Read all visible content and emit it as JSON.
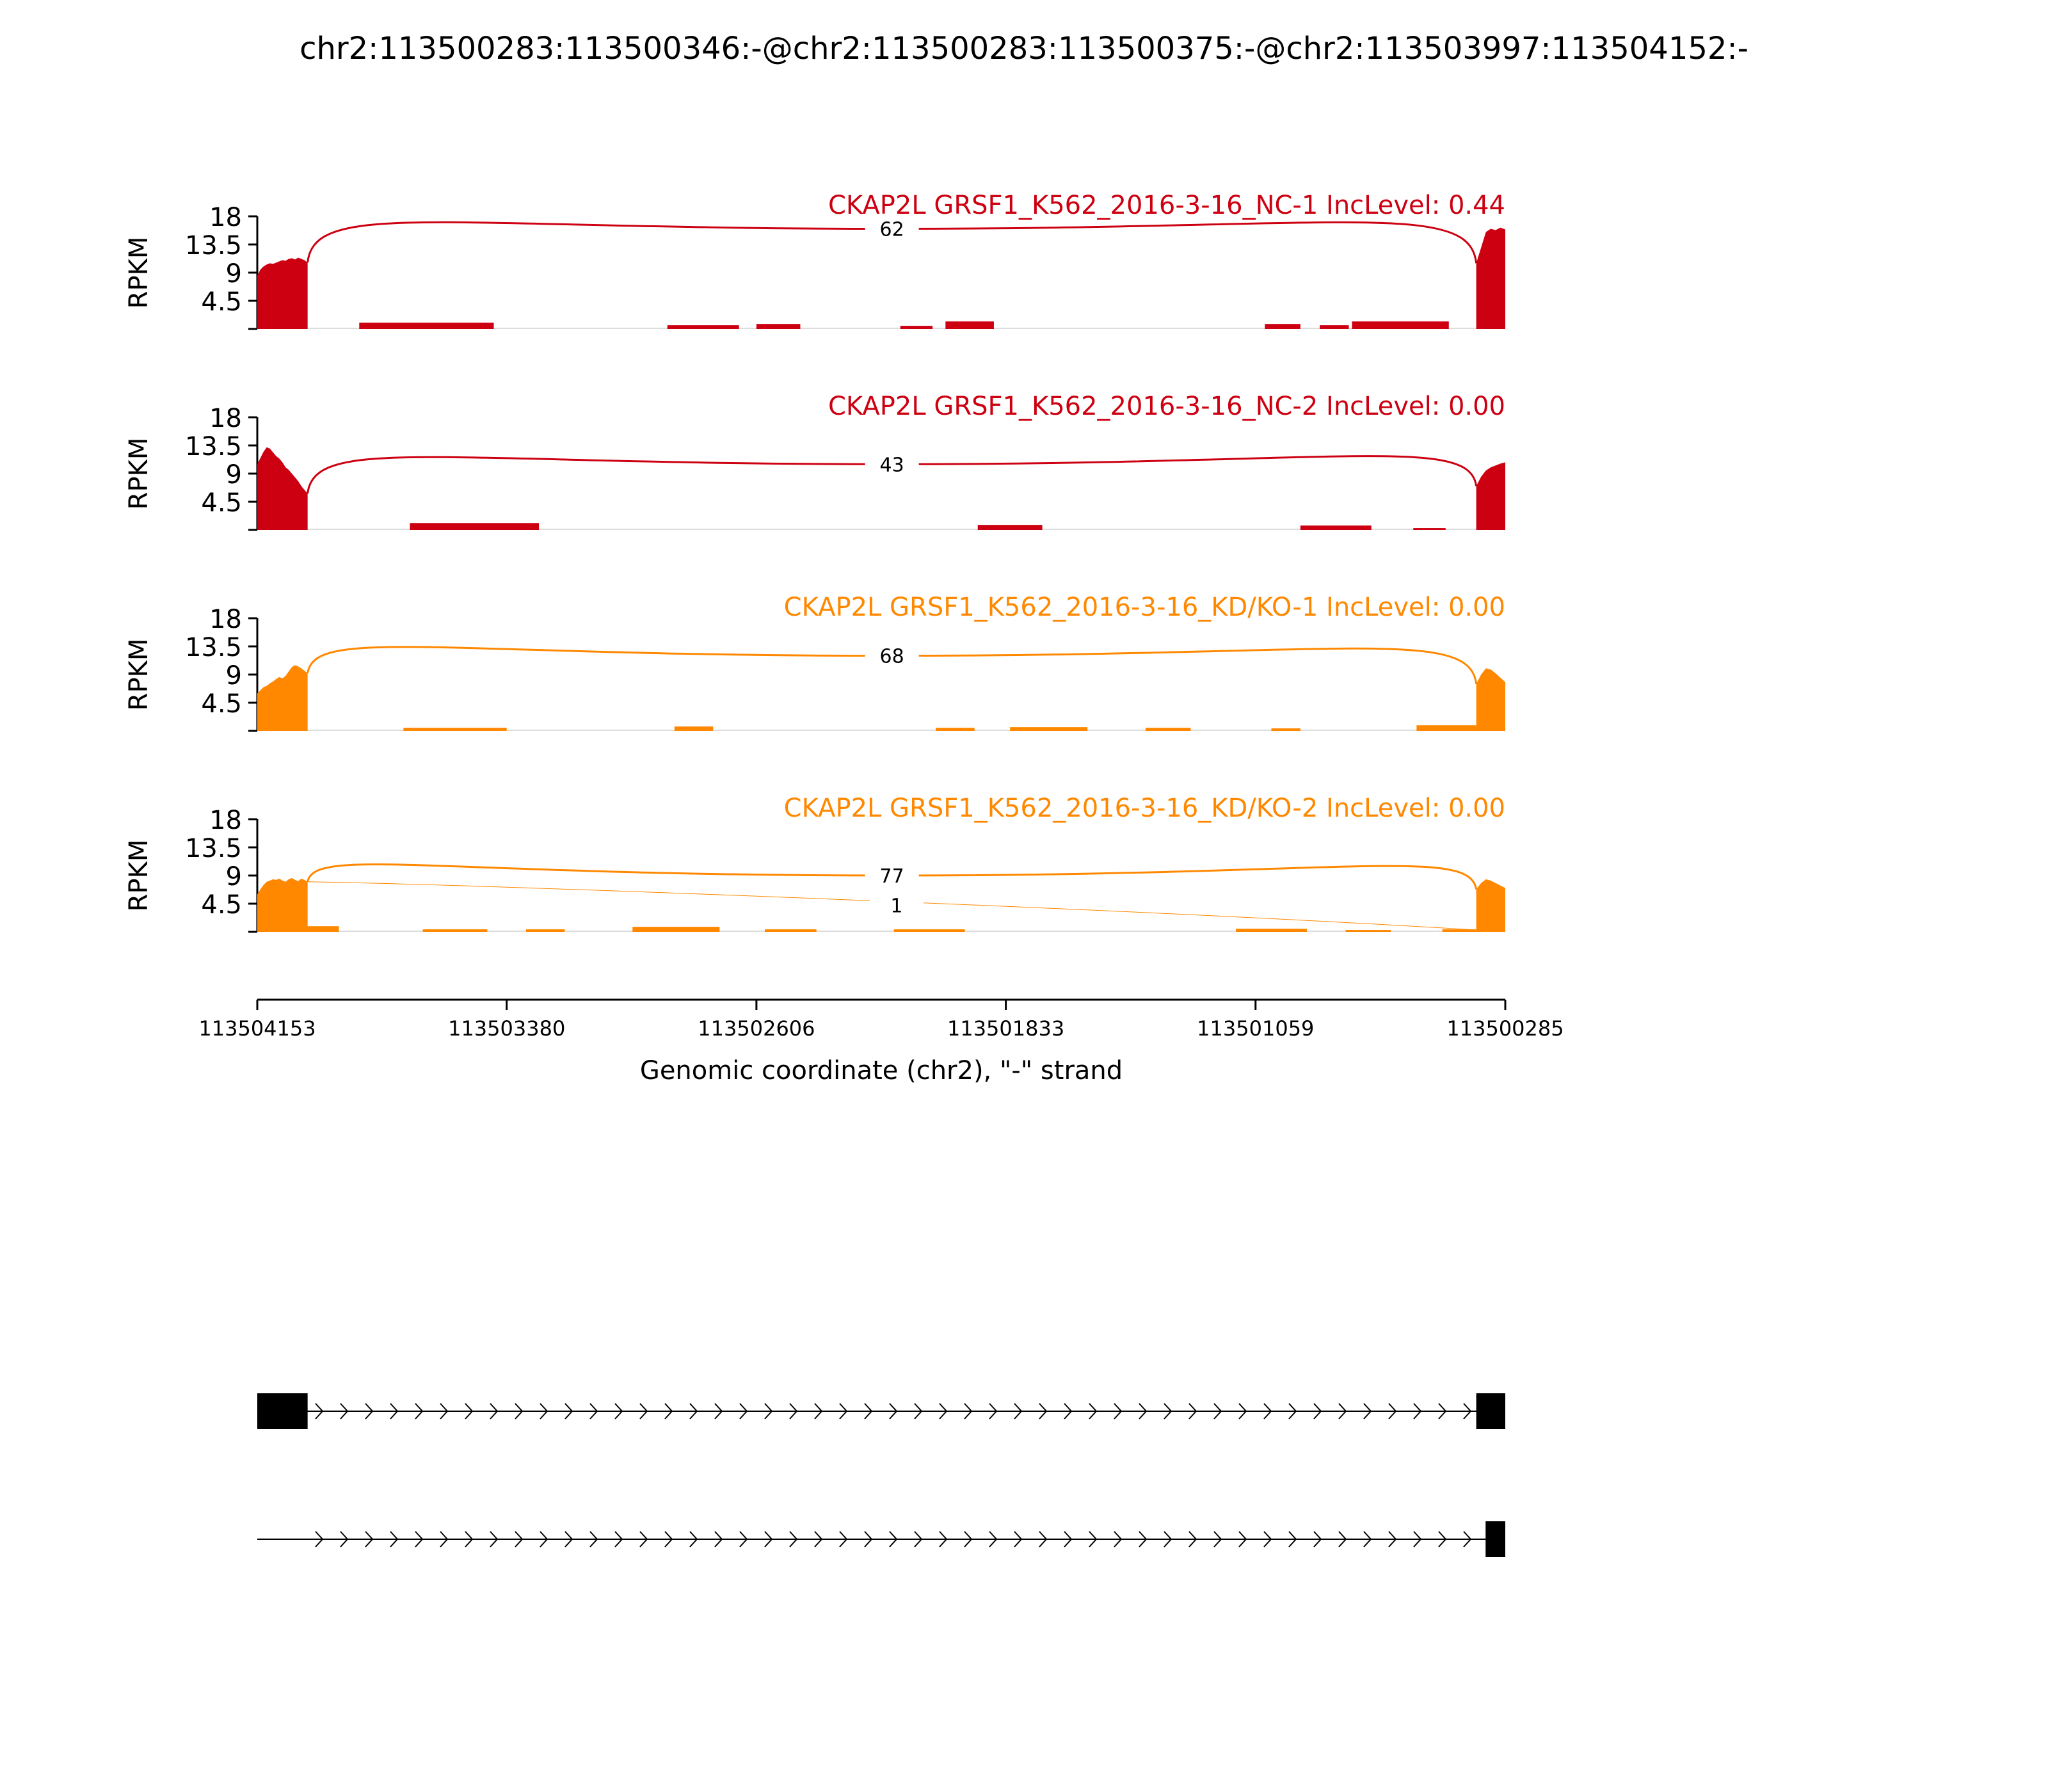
{
  "title": "chr2:113500283:113500346:-@chr2:113500283:113500375:-@chr2:113503997:113504152:-",
  "colors": {
    "nc": "#cc0011",
    "kd": "#ff8800",
    "axis": "#000000",
    "gene": "#000000"
  },
  "chart_data": {
    "type": "area",
    "y_axis": {
      "label": "RPKM",
      "ylim": [
        0,
        18
      ],
      "ticks": [
        "18",
        "13.5",
        "9",
        "4.5"
      ],
      "tick_values": [
        18,
        13.5,
        9,
        4.5
      ]
    },
    "x_axis": {
      "label": "Genomic coordinate (chr2), \"-\" strand",
      "xlim": [
        113504153,
        113500285
      ],
      "ticks": [
        "113504153",
        "113503380",
        "113502606",
        "113501833",
        "113501059",
        "113500285"
      ],
      "tick_values": [
        113504153,
        113503380,
        113502606,
        113501833,
        113501059,
        113500285
      ]
    },
    "exons": {
      "upstream": [
        113504153,
        113503997
      ],
      "downstream": [
        113500375,
        113500285
      ]
    },
    "series": [
      {
        "label": "CKAP2L GRSF1_K562_2016-3-16_NC-1 IncLevel: 0.44",
        "color": "#cc0011",
        "upstream_profile": [
          8.5,
          9.5,
          10.0,
          10.3,
          10.5,
          10.4,
          10.6,
          10.8,
          11.0,
          10.9,
          11.2,
          11.3,
          11.1,
          11.4,
          11.2,
          11.0,
          10.6
        ],
        "downstream_profile": [
          10.5,
          13.0,
          15.5,
          16.0,
          15.8,
          16.2,
          15.9
        ],
        "intron_bumps": [
          {
            "start": 113504108,
            "end": 113504020,
            "height": 0.3
          },
          {
            "start": 113503837,
            "end": 113503420,
            "height": 1.0
          },
          {
            "start": 113502882,
            "end": 113502660,
            "height": 0.6
          },
          {
            "start": 113502606,
            "end": 113502470,
            "height": 0.8
          },
          {
            "start": 113502160,
            "end": 113502060,
            "height": 0.5
          },
          {
            "start": 113502020,
            "end": 113501870,
            "height": 1.2
          },
          {
            "start": 113501030,
            "end": 113500920,
            "height": 0.8
          },
          {
            "start": 113500860,
            "end": 113500770,
            "height": 0.6
          },
          {
            "start": 113500760,
            "end": 113500460,
            "height": 1.2
          }
        ],
        "junctions": [
          {
            "count": "62",
            "peak": 16.0,
            "from": 113503997,
            "to": 113500375
          }
        ]
      },
      {
        "label": "CKAP2L GRSF1_K562_2016-3-16_NC-2 IncLevel: 0.00",
        "color": "#cc0011",
        "upstream_profile": [
          10.5,
          11.5,
          12.5,
          13.2,
          13.0,
          12.4,
          11.8,
          11.4,
          10.8,
          10.0,
          9.6,
          9.0,
          8.4,
          7.8,
          7.0,
          6.4,
          5.8
        ],
        "downstream_profile": [
          7.0,
          8.5,
          9.5,
          10.0,
          10.3,
          10.6,
          10.8
        ],
        "intron_bumps": [
          {
            "start": 113503680,
            "end": 113503280,
            "height": 1.1
          },
          {
            "start": 113501920,
            "end": 113501720,
            "height": 0.8
          },
          {
            "start": 113500920,
            "end": 113500700,
            "height": 0.7
          },
          {
            "start": 113500570,
            "end": 113500470,
            "height": 0.3
          }
        ],
        "junctions": [
          {
            "count": "43",
            "peak": 10.5,
            "from": 113503997,
            "to": 113500375
          }
        ]
      },
      {
        "label": "CKAP2L GRSF1_K562_2016-3-16_KD/KO-1 IncLevel: 0.00",
        "color": "#ff8800",
        "upstream_profile": [
          6.0,
          6.5,
          7.0,
          7.2,
          7.6,
          7.9,
          8.3,
          8.6,
          8.4,
          8.8,
          9.5,
          10.2,
          10.5,
          10.3,
          10.0,
          9.6,
          9.2
        ],
        "downstream_profile": [
          7.5,
          9.0,
          10.0,
          9.8,
          9.2,
          8.5,
          7.8
        ],
        "intron_bumps": [
          {
            "start": 113503700,
            "end": 113503380,
            "height": 0.5
          },
          {
            "start": 113502860,
            "end": 113502740,
            "height": 0.7
          },
          {
            "start": 113502050,
            "end": 113501930,
            "height": 0.5
          },
          {
            "start": 113501820,
            "end": 113501580,
            "height": 0.6
          },
          {
            "start": 113501400,
            "end": 113501260,
            "height": 0.5
          },
          {
            "start": 113501010,
            "end": 113500920,
            "height": 0.4
          },
          {
            "start": 113500560,
            "end": 113500375,
            "height": 0.9
          }
        ],
        "junctions": [
          {
            "count": "68",
            "peak": 12.0,
            "from": 113503997,
            "to": 113500375
          }
        ]
      },
      {
        "label": "CKAP2L GRSF1_K562_2016-3-16_KD/KO-2 IncLevel: 0.00",
        "color": "#ff8800",
        "upstream_profile": [
          6.0,
          6.8,
          7.5,
          8.0,
          8.2,
          8.4,
          8.3,
          8.5,
          8.2,
          8.0,
          8.4,
          8.6,
          8.3,
          8.1,
          8.5,
          8.3,
          8.0
        ],
        "downstream_profile": [
          6.8,
          7.8,
          8.4,
          8.2,
          7.8,
          7.4,
          7.0
        ],
        "intron_bumps": [
          {
            "start": 113504000,
            "end": 113503900,
            "height": 0.9
          },
          {
            "start": 113503640,
            "end": 113503440,
            "height": 0.4
          },
          {
            "start": 113503320,
            "end": 113503200,
            "height": 0.4
          },
          {
            "start": 113502990,
            "end": 113502720,
            "height": 0.8
          },
          {
            "start": 113502580,
            "end": 113502420,
            "height": 0.4
          },
          {
            "start": 113502180,
            "end": 113501960,
            "height": 0.4
          },
          {
            "start": 113501120,
            "end": 113500900,
            "height": 0.5
          },
          {
            "start": 113500780,
            "end": 113500640,
            "height": 0.3
          },
          {
            "start": 113500480,
            "end": 113500375,
            "height": 0.4
          }
        ],
        "junctions": [
          {
            "count": "77",
            "peak": 9.0,
            "from": 113503997,
            "to": 113500375
          },
          {
            "count": "1",
            "peak": 7.5,
            "from": 113503997,
            "to": 113500346,
            "below": true
          }
        ]
      }
    ],
    "isoforms": [
      {
        "exons": [
          [
            113504153,
            113503997
          ],
          [
            113500375,
            113500285
          ]
        ]
      },
      {
        "exons": [
          [
            113500346,
            113500285
          ]
        ]
      }
    ]
  }
}
